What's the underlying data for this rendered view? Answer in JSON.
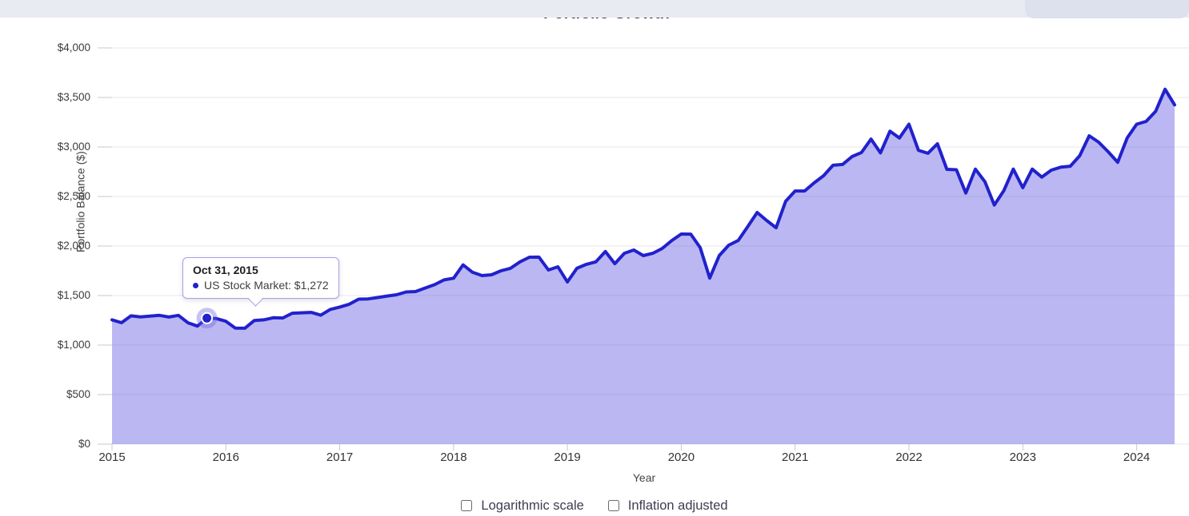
{
  "header": {
    "title": "Portfolio Growth"
  },
  "chart_data": {
    "type": "area",
    "title": "Portfolio Growth",
    "xlabel": "Year",
    "ylabel": "Portfolio Balance ($)",
    "ylim": [
      0,
      4000
    ],
    "grid": true,
    "y_tick_labels": [
      "$0",
      "$500",
      "$1,000",
      "$1,500",
      "$2,000",
      "$2,500",
      "$3,000",
      "$3,500",
      "$4,000"
    ],
    "y_tick_values": [
      0,
      500,
      1000,
      1500,
      2000,
      2500,
      3000,
      3500,
      4000
    ],
    "x_tick_labels": [
      "2015",
      "2016",
      "2017",
      "2018",
      "2019",
      "2020",
      "2021",
      "2022",
      "2023",
      "2024"
    ],
    "x_tick_indices": [
      0,
      12,
      24,
      36,
      48,
      60,
      72,
      84,
      96,
      108
    ],
    "line_color": "#2121cd",
    "fill_color": "rgba(106,98,227,0.46)",
    "highlight_index": 10,
    "series": [
      {
        "name": "US Stock Market",
        "months": [
          "2014-12",
          "2015-01",
          "2015-02",
          "2015-03",
          "2015-04",
          "2015-05",
          "2015-06",
          "2015-07",
          "2015-08",
          "2015-09",
          "2015-10",
          "2015-11",
          "2015-12",
          "2016-01",
          "2016-02",
          "2016-03",
          "2016-04",
          "2016-05",
          "2016-06",
          "2016-07",
          "2016-08",
          "2016-09",
          "2016-10",
          "2016-11",
          "2016-12",
          "2017-01",
          "2017-02",
          "2017-03",
          "2017-04",
          "2017-05",
          "2017-06",
          "2017-07",
          "2017-08",
          "2017-09",
          "2017-10",
          "2017-11",
          "2017-12",
          "2018-01",
          "2018-02",
          "2018-03",
          "2018-04",
          "2018-05",
          "2018-06",
          "2018-07",
          "2018-08",
          "2018-09",
          "2018-10",
          "2018-11",
          "2018-12",
          "2019-01",
          "2019-02",
          "2019-03",
          "2019-04",
          "2019-05",
          "2019-06",
          "2019-07",
          "2019-08",
          "2019-09",
          "2019-10",
          "2019-11",
          "2019-12",
          "2020-01",
          "2020-02",
          "2020-03",
          "2020-04",
          "2020-05",
          "2020-06",
          "2020-07",
          "2020-08",
          "2020-09",
          "2020-10",
          "2020-11",
          "2020-12",
          "2021-01",
          "2021-02",
          "2021-03",
          "2021-04",
          "2021-05",
          "2021-06",
          "2021-07",
          "2021-08",
          "2021-09",
          "2021-10",
          "2021-11",
          "2021-12",
          "2022-01",
          "2022-02",
          "2022-03",
          "2022-04",
          "2022-05",
          "2022-06",
          "2022-07",
          "2022-08",
          "2022-09",
          "2022-10",
          "2022-11",
          "2022-12",
          "2023-01",
          "2023-02",
          "2023-03",
          "2023-04",
          "2023-05",
          "2023-06",
          "2023-07",
          "2023-08",
          "2023-09",
          "2023-10",
          "2023-11",
          "2023-12",
          "2024-01",
          "2024-02",
          "2024-03",
          "2024-04"
        ],
        "values": [
          1255,
          1226,
          1295,
          1285,
          1292,
          1300,
          1283,
          1300,
          1225,
          1192,
          1272,
          1268,
          1240,
          1172,
          1170,
          1248,
          1255,
          1276,
          1273,
          1322,
          1326,
          1330,
          1302,
          1360,
          1384,
          1412,
          1464,
          1466,
          1480,
          1495,
          1508,
          1536,
          1540,
          1576,
          1610,
          1658,
          1675,
          1810,
          1735,
          1702,
          1710,
          1750,
          1775,
          1840,
          1887,
          1888,
          1758,
          1790,
          1637,
          1775,
          1815,
          1840,
          1944,
          1822,
          1927,
          1960,
          1903,
          1927,
          1976,
          2056,
          2121,
          2120,
          1984,
          1677,
          1903,
          2008,
          2056,
          2194,
          2339,
          2258,
          2185,
          2452,
          2556,
          2556,
          2637,
          2710,
          2815,
          2823,
          2903,
          2944,
          3080,
          2940,
          3160,
          3090,
          3230,
          2966,
          2936,
          3032,
          2774,
          2770,
          2535,
          2777,
          2650,
          2414,
          2560,
          2777,
          2589,
          2777,
          2696,
          2766,
          2796,
          2806,
          2911,
          3113,
          3048,
          2952,
          2845,
          3090,
          3230,
          3258,
          3360,
          3583,
          3425
        ]
      }
    ]
  },
  "tooltip": {
    "date": "Oct 31, 2015",
    "series": "US Stock Market",
    "value": "$1,272",
    "entry": "US Stock Market: $1,272",
    "dot_color": "#2121cd"
  },
  "controls": {
    "log_scale_label": "Logarithmic scale",
    "log_scale_checked": false,
    "inflation_label": "Inflation adjusted",
    "inflation_checked": false
  }
}
